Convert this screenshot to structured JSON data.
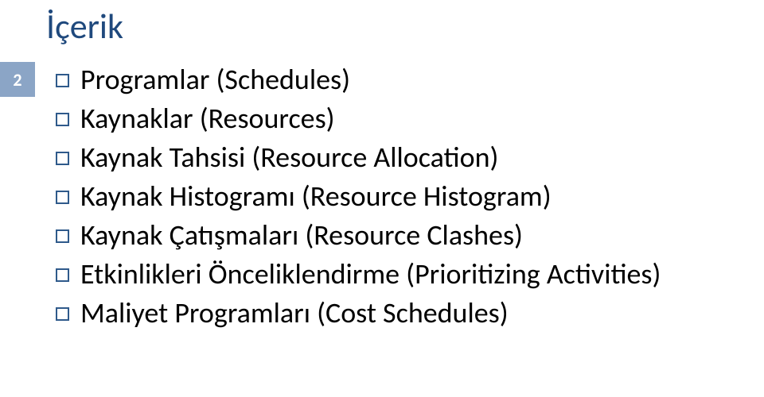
{
  "slide": {
    "title": "İçerik",
    "page_number": "2",
    "items": [
      {
        "text": "Programlar (Schedules)"
      },
      {
        "text": "Kaynaklar (Resources)"
      },
      {
        "text": "Kaynak Tahsisi (Resource Allocation)"
      },
      {
        "text": "Kaynak Histogramı (Resource Histogram)"
      },
      {
        "text": "Kaynak Çatışmaları (Resource Clashes)"
      },
      {
        "text": "Etkinlikleri Önceliklendirme (Prioritizing Activities)"
      },
      {
        "text": "Maliyet Programları (Cost Schedules)"
      }
    ],
    "colors": {
      "title_color": "#1f497d",
      "badge_bg": "#8ba5c6",
      "badge_text": "#ffffff",
      "bullet_border": "#2f5a8b",
      "body_text": "#000000",
      "background": "#ffffff"
    },
    "typography": {
      "title_fontsize": 44,
      "body_fontsize": 36,
      "badge_fontsize": 22
    }
  }
}
